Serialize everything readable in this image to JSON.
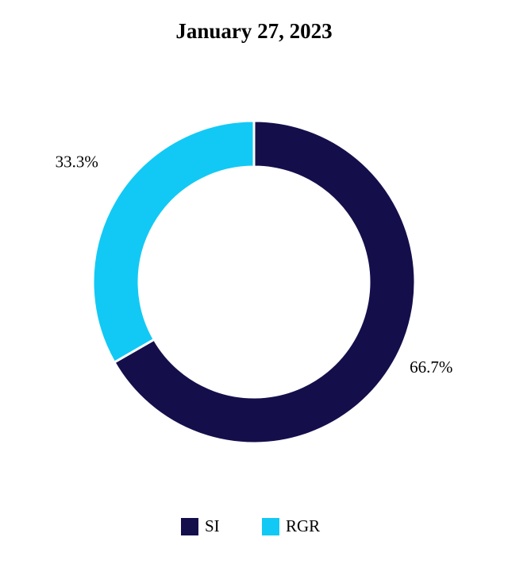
{
  "chart_data": {
    "type": "pie",
    "title": "January 27, 2023",
    "categories": [
      "SI",
      "RGR"
    ],
    "values": [
      66.7,
      33.3
    ],
    "value_labels": [
      "66.7%",
      "33.3%"
    ],
    "colors": [
      "#140f4b",
      "#12c9f5"
    ],
    "donut": true,
    "legend": "bottom"
  }
}
